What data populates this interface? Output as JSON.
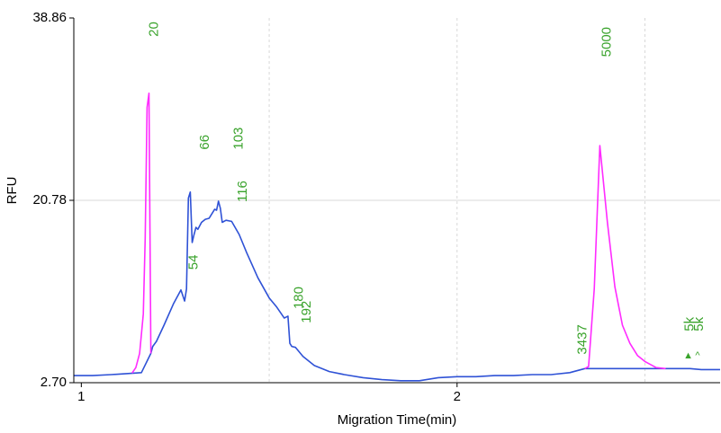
{
  "chart_data": {
    "type": "line",
    "title": "",
    "xlabel": "Migration Time(min)",
    "ylabel": "RFU",
    "xlim": [
      0.98,
      2.7
    ],
    "ylim": [
      2.7,
      38.86
    ],
    "x_ticks": [
      {
        "value": 1,
        "label": "1"
      },
      {
        "value": 2,
        "label": "2"
      }
    ],
    "y_ticks": [
      {
        "value": 2.7,
        "label": "2.70"
      },
      {
        "value": 20.78,
        "label": "20.78"
      },
      {
        "value": 38.86,
        "label": "38.86"
      }
    ],
    "x_gridlines": [
      1.5,
      2.0,
      2.5
    ],
    "y_gridlines": [
      20.78
    ],
    "grid": true,
    "colors": {
      "trace": "#2f52d6",
      "ladder_marker": "#ff2bff",
      "peak_label": "#3aa32c",
      "grid": "#d8d8d8"
    },
    "series": [
      {
        "color": "#2f52d6",
        "x": [
          0.98,
          1.03,
          1.08,
          1.12,
          1.16,
          1.185,
          1.19,
          1.2,
          1.22,
          1.245,
          1.265,
          1.275,
          1.28,
          1.285,
          1.29,
          1.295,
          1.3,
          1.305,
          1.31,
          1.32,
          1.33,
          1.34,
          1.345,
          1.355,
          1.36,
          1.365,
          1.37,
          1.375,
          1.385,
          1.4,
          1.42,
          1.44,
          1.47,
          1.5,
          1.52,
          1.54,
          1.55,
          1.555,
          1.56,
          1.57,
          1.59,
          1.62,
          1.66,
          1.7,
          1.75,
          1.8,
          1.85,
          1.9,
          1.95,
          2.0,
          2.05,
          2.1,
          2.15,
          2.2,
          2.25,
          2.3,
          2.34,
          2.6,
          2.62,
          2.65,
          2.7
        ],
        "y": [
          3.4,
          3.4,
          3.5,
          3.6,
          3.7,
          5.6,
          6.3,
          6.8,
          8.4,
          10.5,
          11.9,
          10.8,
          12.0,
          21.0,
          21.6,
          16.6,
          17.4,
          18.1,
          17.9,
          18.6,
          18.9,
          19.0,
          19.3,
          19.9,
          19.8,
          20.7,
          20.0,
          18.6,
          18.8,
          18.7,
          17.4,
          15.6,
          13.1,
          11.1,
          10.2,
          9.1,
          9.3,
          6.6,
          6.3,
          6.2,
          5.3,
          4.4,
          3.8,
          3.5,
          3.2,
          3.0,
          2.9,
          2.9,
          3.2,
          3.3,
          3.3,
          3.4,
          3.4,
          3.5,
          3.5,
          3.7,
          4.1,
          4.1,
          4.1,
          4.0,
          4.0
        ]
      },
      {
        "color": "#ff2bff",
        "x": [
          1.135,
          1.145,
          1.155,
          1.165,
          1.17,
          1.175,
          1.18,
          1.185
        ],
        "y": [
          3.65,
          4.2,
          5.6,
          9.5,
          17.0,
          30.0,
          31.4,
          5.6
        ]
      },
      {
        "color": "#ff2bff",
        "x": [
          2.34,
          2.35,
          2.365,
          2.38,
          2.4,
          2.42,
          2.44,
          2.46,
          2.48,
          2.5,
          2.53,
          2.555
        ],
        "y": [
          4.1,
          4.3,
          12.0,
          26.2,
          18.6,
          12.2,
          8.4,
          6.6,
          5.4,
          4.8,
          4.2,
          4.1
        ]
      }
    ],
    "peak_labels": [
      {
        "text": "20",
        "x": 1.195,
        "y": 37.0,
        "color": "#3aa32c"
      },
      {
        "text": "66",
        "x": 1.33,
        "y": 25.8,
        "color": "#3aa32c"
      },
      {
        "text": "103",
        "x": 1.42,
        "y": 25.8,
        "color": "#3aa32c"
      },
      {
        "text": "116",
        "x": 1.43,
        "y": 20.6,
        "color": "#3aa32c"
      },
      {
        "text": "54",
        "x": 1.3,
        "y": 13.9,
        "color": "#3aa32c"
      },
      {
        "text": "180",
        "x": 1.58,
        "y": 10.0,
        "color": "#3aa32c"
      },
      {
        "text": "192",
        "x": 1.6,
        "y": 8.6,
        "color": "#3aa32c"
      },
      {
        "text": "5000",
        "x": 2.4,
        "y": 35.0,
        "color": "#3aa32c"
      },
      {
        "text": "3437",
        "x": 2.335,
        "y": 5.5,
        "color": "#3aa32c"
      },
      {
        "text": "5k",
        "x": 2.62,
        "y": 7.8,
        "color": "#3aa32c"
      },
      {
        "text": "5k",
        "x": 2.645,
        "y": 7.8,
        "color": "#3aa32c"
      }
    ],
    "markers": [
      {
        "text": "▲",
        "x": 2.615,
        "y": 5.1,
        "color": "#3aa32c"
      },
      {
        "text": "^",
        "x": 2.64,
        "y": 5.1,
        "color": "#3aa32c"
      }
    ]
  }
}
